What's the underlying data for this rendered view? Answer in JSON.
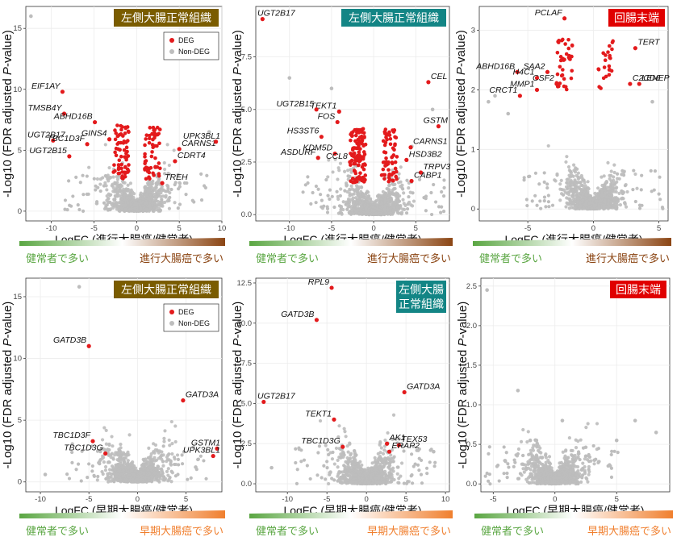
{
  "legend": {
    "deg": "DEG",
    "non_deg": "Non-DEG"
  },
  "colors": {
    "deg": "#e31a1c",
    "non_deg": "#bdbdbd",
    "bar_healthy": "#5aa642",
    "bar_advanced": "#8b4513",
    "bar_early": "#f07f2e",
    "label_healthy": "#5aa642",
    "label_advanced": "#8b4513",
    "label_early": "#f07f2e"
  },
  "chart_data": [
    {
      "type": "scatter",
      "badge": "左側大腸正常組織",
      "badge_color": "#7a5c00",
      "xlabel": "LogFC (進行大腸癌/健常者)",
      "ylabel_main": "-Log10 (FDR adjusted ",
      "ylabel_em": "P",
      "ylabel_tail": "-value)",
      "xticks": [
        -10,
        -5,
        0,
        5,
        10
      ],
      "yticks": [
        0,
        5,
        10,
        15
      ],
      "xlim": [
        -13,
        10
      ],
      "ylim": [
        -0.8,
        16.8
      ],
      "legend": true,
      "bar_left": "健常者で多い",
      "bar_right": "進行大腸癌で多い",
      "bar_kind": "advanced",
      "labeled_points": [
        {
          "name": "EIF1AY",
          "x": -8.7,
          "y": 9.8
        },
        {
          "name": "TMSB4Y",
          "x": -8.5,
          "y": 8.0
        },
        {
          "name": "ABHD16B",
          "x": -4.9,
          "y": 7.3
        },
        {
          "name": "UGT2B17",
          "x": -9.8,
          "y": 5.8
        },
        {
          "name": "TBC1D3F",
          "x": -5.8,
          "y": 5.5
        },
        {
          "name": "GINS4",
          "x": -3.2,
          "y": 5.9
        },
        {
          "name": "UGT2B15",
          "x": -7.9,
          "y": 4.5
        },
        {
          "name": "CARNS1",
          "x": 5.0,
          "y": 5.1
        },
        {
          "name": "UPK3BL1",
          "x": 9.3,
          "y": 5.7
        },
        {
          "name": "CDRT4",
          "x": 4.5,
          "y": 4.1
        },
        {
          "name": "TREH",
          "x": 3.0,
          "y": 2.3
        }
      ],
      "extra_points": [
        {
          "x": -12.4,
          "y": 16.0
        },
        {
          "x": 8.5,
          "y": 6.5
        }
      ]
    },
    {
      "type": "scatter",
      "badge": "左側大腸正常組織",
      "badge_color": "#138585",
      "xlabel": "LogFC (進行大腸癌/健常者)",
      "ylabel_main": "-Log10 (FDR adjusted ",
      "ylabel_em": "P",
      "ylabel_tail": "-value)",
      "xticks": [
        -10,
        -5,
        0,
        5
      ],
      "yticks": [
        0.0,
        2.5,
        5.0,
        7.5
      ],
      "ylabel_ticks": [
        "0.0",
        "2.5",
        "5.0",
        "7.5"
      ],
      "xlim": [
        -14,
        9
      ],
      "ylim": [
        -0.3,
        9.9
      ],
      "legend": false,
      "bar_left": "健常者で多い",
      "bar_right": "進行大腸癌で多い",
      "bar_kind": "advanced",
      "labeled_points": [
        {
          "name": "UGT2B17",
          "x": -13.2,
          "y": 9.3
        },
        {
          "name": "TEKT1",
          "x": -4.1,
          "y": 4.9
        },
        {
          "name": "UGT2B15",
          "x": -6.8,
          "y": 5.0
        },
        {
          "name": "FOS",
          "x": -4.3,
          "y": 4.4
        },
        {
          "name": "HS3ST6",
          "x": -6.2,
          "y": 3.7
        },
        {
          "name": "KDM5D",
          "x": -4.6,
          "y": 2.9
        },
        {
          "name": "CCL8",
          "x": -2.8,
          "y": 2.5
        },
        {
          "name": "ASDURF",
          "x": -6.6,
          "y": 2.7
        },
        {
          "name": "CEL",
          "x": 6.5,
          "y": 6.3
        },
        {
          "name": "GSTM",
          "x": 7.7,
          "y": 4.2
        },
        {
          "name": "CARNS1",
          "x": 4.4,
          "y": 3.2
        },
        {
          "name": "HSD3B2",
          "x": 3.9,
          "y": 2.6
        },
        {
          "name": "TRPV3",
          "x": 5.6,
          "y": 2.0
        },
        {
          "name": "CABP1",
          "x": 4.5,
          "y": 1.6
        }
      ],
      "extra_points": [
        {
          "x": -5.0,
          "y": 6.0
        },
        {
          "x": -10.0,
          "y": 6.5
        },
        {
          "x": 7.0,
          "y": 5.0
        }
      ]
    },
    {
      "type": "scatter",
      "badge": "回腸末端",
      "badge_color": "#e00000",
      "xlabel": "LogFC (進行大腸癌/健常者)",
      "ylabel_main": "-Log10 (FDR adjusted ",
      "ylabel_em": "P",
      "ylabel_tail": "-value)",
      "xticks": [
        -5,
        0,
        5
      ],
      "yticks": [
        0,
        1,
        2,
        3
      ],
      "xlim": [
        -8.7,
        5.7
      ],
      "ylim": [
        -0.2,
        3.4
      ],
      "legend": false,
      "bar_left": "健常者で多い",
      "bar_right": "進行大腸癌で多い",
      "bar_kind": "advanced",
      "labeled_points": [
        {
          "name": "PCLAF",
          "x": -2.2,
          "y": 3.2
        },
        {
          "name": "ABHD16B",
          "x": -5.8,
          "y": 2.3
        },
        {
          "name": "H4C1",
          "x": -4.3,
          "y": 2.2
        },
        {
          "name": "SAA2",
          "x": -3.5,
          "y": 2.3
        },
        {
          "name": "CSF2",
          "x": -2.8,
          "y": 2.1
        },
        {
          "name": "CRCT1",
          "x": -5.6,
          "y": 1.9
        },
        {
          "name": "MMP1",
          "x": -4.3,
          "y": 2.0
        },
        {
          "name": "TERT",
          "x": 3.2,
          "y": 2.7
        },
        {
          "name": "LENEP",
          "x": 3.5,
          "y": 2.1
        },
        {
          "name": "C2CD6",
          "x": 2.8,
          "y": 2.1
        }
      ],
      "extra_points": [
        {
          "x": -8.0,
          "y": 1.8
        },
        {
          "x": -7.5,
          "y": 1.9
        },
        {
          "x": 4.5,
          "y": 1.8
        },
        {
          "x": -6.5,
          "y": 1.6
        }
      ]
    },
    {
      "type": "scatter",
      "badge": "左側大腸正常組織",
      "badge_color": "#7a5c00",
      "xlabel": "LogFC (早期大腸癌/健常者)",
      "ylabel_main": "-Log10 (FDR adjusted ",
      "ylabel_em": "P",
      "ylabel_tail": "-value)",
      "xticks": [
        -10,
        -5,
        0,
        5
      ],
      "yticks": [
        0,
        5,
        10,
        15
      ],
      "xlim": [
        -11.5,
        8.7
      ],
      "ylim": [
        -0.8,
        16.5
      ],
      "legend": true,
      "bar_left": "健常者で多い",
      "bar_right": "早期大腸癌で多い",
      "bar_kind": "early",
      "labeled_points": [
        {
          "name": "GATD3B",
          "x": -5.0,
          "y": 11.0
        },
        {
          "name": "GATD3A",
          "x": 4.7,
          "y": 6.6
        },
        {
          "name": "TBC1D3F",
          "x": -4.6,
          "y": 3.3
        },
        {
          "name": "TBC1D3G",
          "x": -3.3,
          "y": 2.3
        },
        {
          "name": "GSTM1",
          "x": 8.2,
          "y": 2.7
        },
        {
          "name": "UPK3BL1",
          "x": 7.8,
          "y": 2.1
        }
      ],
      "extra_points": [
        {
          "x": -6.0,
          "y": 15.8
        },
        {
          "x": -9.5,
          "y": 0.6
        },
        {
          "x": 6.0,
          "y": 1.2
        }
      ]
    },
    {
      "type": "scatter",
      "badge": "左側大腸 正常組織",
      "badge_color": "#138585",
      "xlabel": "LogFC (早期大腸癌/健常者)",
      "ylabel_main": "-Log10 (FDR adjusted ",
      "ylabel_em": "P",
      "ylabel_tail": "-value)",
      "xticks": [
        -10,
        -5,
        0,
        5,
        10
      ],
      "yticks": [
        0.0,
        2.5,
        5.0,
        7.5,
        10.0,
        12.5
      ],
      "ylabel_ticks": [
        "0.0",
        "2.5",
        "5.0",
        "7.5",
        "10.0",
        "12.5"
      ],
      "xlim": [
        -14,
        10.5
      ],
      "ylim": [
        -0.5,
        12.8
      ],
      "legend": false,
      "bar_left": "健常者で多い",
      "bar_right": "早期大腸癌で多い",
      "bar_kind": "early",
      "labeled_points": [
        {
          "name": "RPL9",
          "x": -4.4,
          "y": 12.2
        },
        {
          "name": "GATD3B",
          "x": -6.3,
          "y": 10.2
        },
        {
          "name": "UGT2B17",
          "x": -13.0,
          "y": 5.1
        },
        {
          "name": "GATD3A",
          "x": 4.8,
          "y": 5.7
        },
        {
          "name": "TEKT1",
          "x": -4.1,
          "y": 4.0
        },
        {
          "name": "AK1",
          "x": 2.6,
          "y": 2.5
        },
        {
          "name": "TEX53",
          "x": 4.1,
          "y": 2.4
        },
        {
          "name": "TBC1D3G",
          "x": -3.0,
          "y": 2.3
        },
        {
          "name": "ERAP2",
          "x": 2.9,
          "y": 2.0
        }
      ],
      "extra_points": [
        {
          "x": 8.5,
          "y": 2.0
        },
        {
          "x": -12.0,
          "y": 1.0
        }
      ]
    },
    {
      "type": "scatter",
      "badge": "回腸末端",
      "badge_color": "#e00000",
      "xlabel": "LogFC (早期大腸癌/健常者)",
      "ylabel_main": "-Log10 (FDR adjusted ",
      "ylabel_em": "P",
      "ylabel_tail": "-value)",
      "xticks": [
        -5,
        0,
        5
      ],
      "yticks": [
        0.0,
        0.5,
        1.0,
        1.5,
        2.0,
        2.5
      ],
      "ylabel_ticks": [
        "0.0",
        "0.5",
        "1.0",
        "1.5",
        "2.0",
        "2.5"
      ],
      "xlim": [
        -6.0,
        9.3
      ],
      "ylim": [
        -0.1,
        2.6
      ],
      "legend": false,
      "bar_left": "健常者で多い",
      "bar_right": "早期大腸癌で多い",
      "bar_kind": "early",
      "labeled_points": [],
      "extra_points": [
        {
          "x": -5.5,
          "y": 2.45
        },
        {
          "x": -3.0,
          "y": 1.18
        },
        {
          "x": 0.6,
          "y": 0.8
        },
        {
          "x": 6.5,
          "y": 0.8
        },
        {
          "x": 8.2,
          "y": 0.65
        },
        {
          "x": 5.0,
          "y": 0.55
        },
        {
          "x": -2.0,
          "y": 0.55
        },
        {
          "x": -1.5,
          "y": 0.55
        },
        {
          "x": 2.5,
          "y": 0.35
        },
        {
          "x": 3.2,
          "y": 0.3
        }
      ]
    }
  ]
}
